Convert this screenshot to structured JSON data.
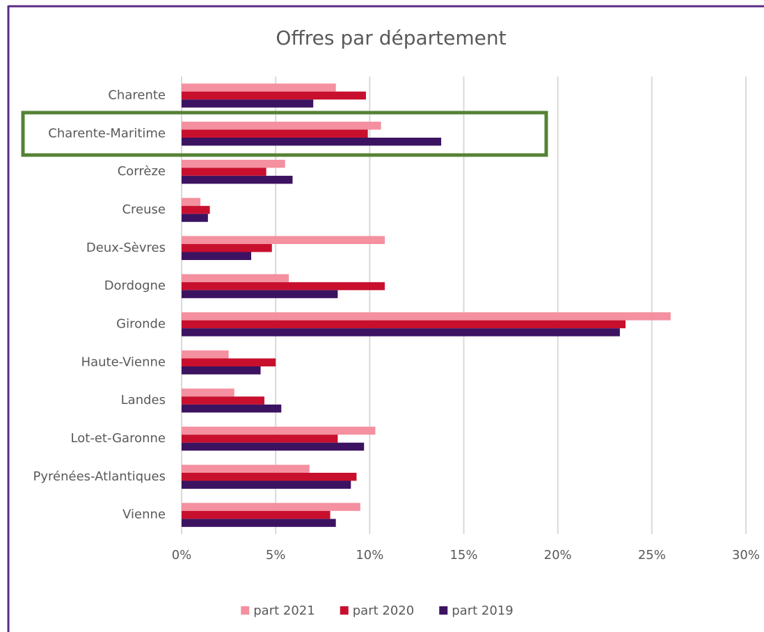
{
  "chart_data": {
    "type": "bar",
    "orientation": "horizontal",
    "title": "Offres par département",
    "categories": [
      "Charente",
      "Charente-Maritime",
      "Corrèze",
      "Creuse",
      "Deux-Sèvres",
      "Dordogne",
      "Gironde",
      "Haute-Vienne",
      "Landes",
      "Lot-et-Garonne",
      "Pyrénées-Atlantiques",
      "Vienne"
    ],
    "series": [
      {
        "name": "part 2021",
        "color": "#f4909f",
        "values": [
          8.2,
          10.6,
          5.5,
          1.0,
          10.8,
          5.7,
          26.0,
          2.5,
          2.8,
          10.3,
          6.8,
          9.5
        ]
      },
      {
        "name": "part 2020",
        "color": "#c8102e",
        "values": [
          9.8,
          9.9,
          4.5,
          1.5,
          4.8,
          10.8,
          23.6,
          5.0,
          4.4,
          8.3,
          9.3,
          7.9
        ]
      },
      {
        "name": "part 2019",
        "color": "#3c1361",
        "values": [
          7.0,
          13.8,
          5.9,
          1.4,
          3.7,
          8.3,
          23.3,
          4.2,
          5.3,
          9.7,
          9.0,
          8.2
        ]
      }
    ],
    "xlim": [
      0,
      30
    ],
    "xticks": [
      {
        "value": 0,
        "label": "0%"
      },
      {
        "value": 5,
        "label": "5%"
      },
      {
        "value": 10,
        "label": "10%"
      },
      {
        "value": 15,
        "label": "15%"
      },
      {
        "value": 20,
        "label": "20%"
      },
      {
        "value": 25,
        "label": "25%"
      },
      {
        "value": 30,
        "label": "30%"
      }
    ],
    "grid": true,
    "legend": "bottom"
  }
}
